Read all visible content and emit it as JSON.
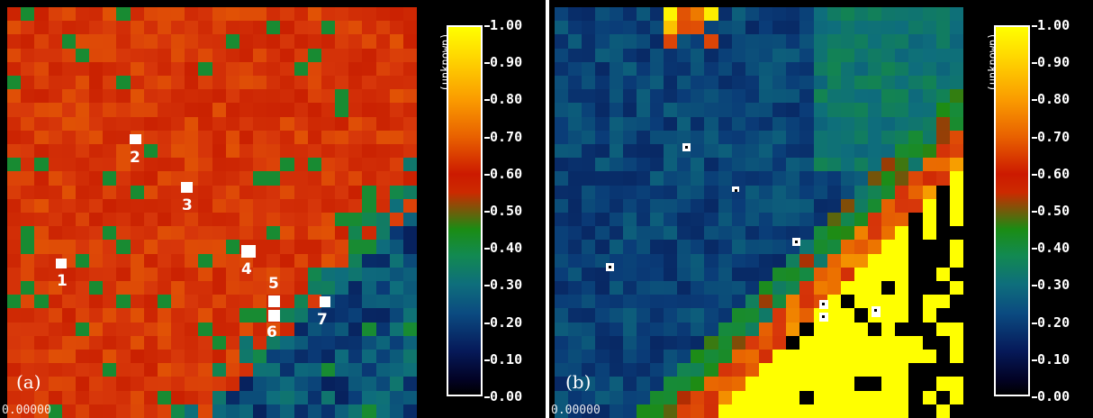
{
  "panels": [
    {
      "id": "a",
      "label": "(a)",
      "corner_value": "0.00000",
      "colorbar_title": "(unknown)",
      "markers": [
        "1",
        "2",
        "3",
        "4",
        "5",
        "6",
        "7"
      ]
    },
    {
      "id": "b",
      "label": "(b)",
      "corner_value": "0.00000",
      "colorbar_title": "(unknown)",
      "marker_count": 7
    }
  ],
  "colorbar": {
    "ticks": [
      "1.00",
      "0.90",
      "0.80",
      "0.70",
      "0.60",
      "0.50",
      "0.40",
      "0.30",
      "0.20",
      "0.10",
      "0.00"
    ],
    "range": [
      0.0,
      1.0
    ],
    "colors": [
      "#000000",
      "#061a5a",
      "#0b4a80",
      "#0e6e7c",
      "#128a50",
      "#1b8c14",
      "#cc1a00",
      "#e86000",
      "#fa9a00",
      "#ffd800",
      "#ffff00"
    ]
  }
}
